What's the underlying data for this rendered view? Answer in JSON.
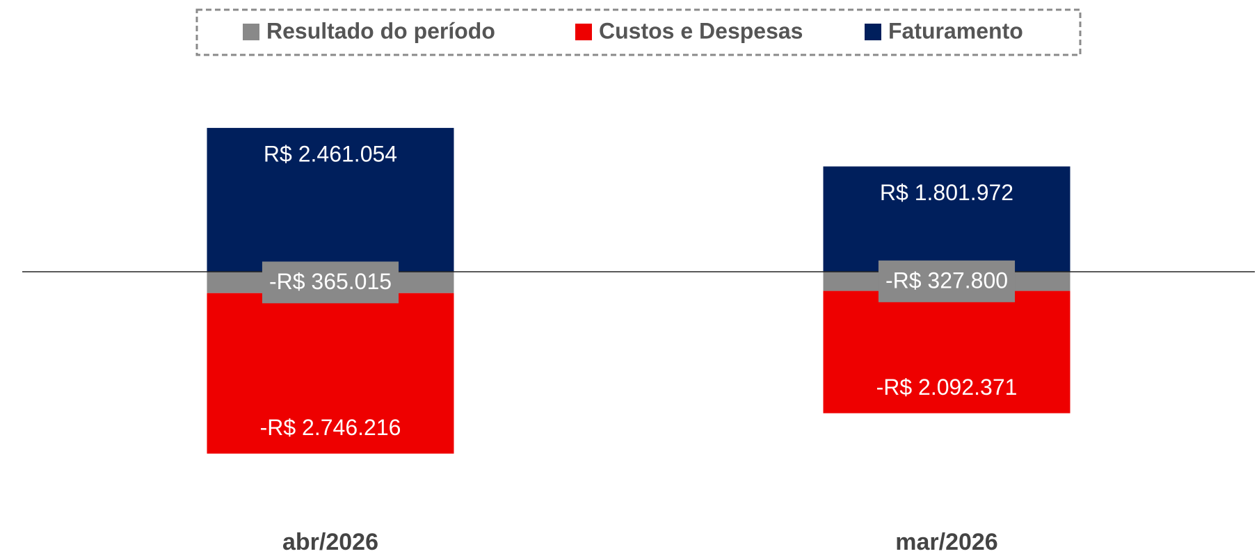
{
  "chart_data": {
    "type": "stacked_bar",
    "categories": [
      "abr/2026",
      "mar/2026"
    ],
    "series": [
      {
        "name": "Resultado do período",
        "color": "#898989",
        "values": [
          -365015,
          -327800
        ],
        "value_labels": [
          "-R$ 365.015",
          "-R$ 327.800"
        ]
      },
      {
        "name": "Custos e Despesas",
        "color": "#ee0000",
        "values": [
          -2746216,
          -2092371
        ],
        "value_labels": [
          "-R$ 2.746.216",
          "-R$ 2.092.371"
        ]
      },
      {
        "name": "Faturamento",
        "color": "#001f5c",
        "values": [
          2461054,
          1801972
        ],
        "value_labels": [
          "R$ 2.461.054",
          "R$ 1.801.972"
        ]
      }
    ],
    "ylim": [
      -3800000,
      3300000
    ],
    "legend": "top"
  }
}
